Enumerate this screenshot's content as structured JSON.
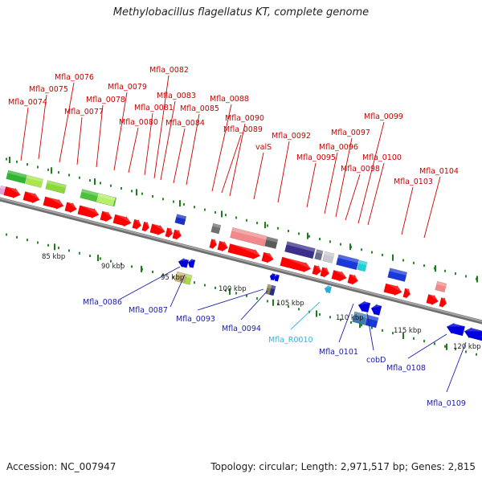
{
  "title": "Methylobacillus flagellatus KT, complete genome",
  "footer": {
    "accession": "Accession: NC_007947",
    "topology": "Topology: circular; Length: 2,971,517 bp; Genes: 2,815"
  },
  "colors": {
    "forward_label": "#cc0000",
    "reverse_label": "#1a1aa8",
    "rna_label": "#33b5d6",
    "backbone": "#8a8a8a",
    "forward_gene": "#ff0000",
    "reverse_gene": "#0000dd"
  },
  "ruler": {
    "ticks": [
      {
        "label": "85 kbp"
      },
      {
        "label": "90 kbp"
      },
      {
        "label": "95 kbp"
      },
      {
        "label": "100 kbp"
      },
      {
        "label": "105 kbp"
      },
      {
        "label": "110 kbp"
      },
      {
        "label": "115 kbp"
      },
      {
        "label": "120 kbp"
      }
    ]
  },
  "forward_labels": [
    "Mfla_0074",
    "Mfla_0075",
    "Mfla_0076",
    "Mfla_0077",
    "Mfla_0078",
    "Mfla_0079",
    "Mfla_0080",
    "Mfla_0081",
    "Mfla_0082",
    "Mfla_0083",
    "Mfla_0084",
    "Mfla_0085",
    "Mfla_0088",
    "Mfla_0089",
    "Mfla_0090",
    "valS",
    "Mfla_0092",
    "Mfla_0095",
    "Mfla_0096",
    "Mfla_0097",
    "Mfla_0098",
    "Mfla_0099",
    "Mfla_0100",
    "Mfla_0103",
    "Mfla_0104"
  ],
  "reverse_labels": [
    "Mfla_0086",
    "Mfla_0087",
    "Mfla_0093",
    "Mfla_0094",
    "Mfla_R0010",
    "Mfla_0101",
    "cobD",
    "Mfla_0108",
    "Mfla_0109"
  ]
}
